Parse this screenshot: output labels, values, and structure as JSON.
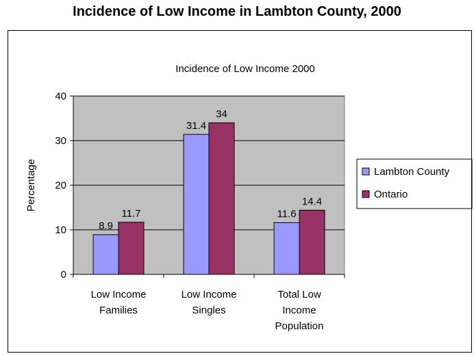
{
  "page_title": "Incidence of Low Income in Lambton County, 2000",
  "chart_data": {
    "type": "bar",
    "title": "Incidence of Low Income 2000",
    "ylabel": "Percentage",
    "xlabel": "",
    "ylim": [
      0,
      40
    ],
    "yticks": [
      0,
      10,
      20,
      30,
      40
    ],
    "grid": true,
    "legend_position": "right",
    "plot_background": "#c0c0c0",
    "categories": [
      [
        "Low  Income",
        "Families"
      ],
      [
        "Low  Income",
        "Singles"
      ],
      [
        "Total Low",
        "Income",
        "Population"
      ]
    ],
    "series": [
      {
        "name": "Lambton County",
        "color": "#9999ff",
        "values": [
          8.9,
          31.4,
          11.6
        ]
      },
      {
        "name": "Ontario",
        "color": "#993366",
        "values": [
          11.7,
          34,
          14.4
        ]
      }
    ]
  }
}
